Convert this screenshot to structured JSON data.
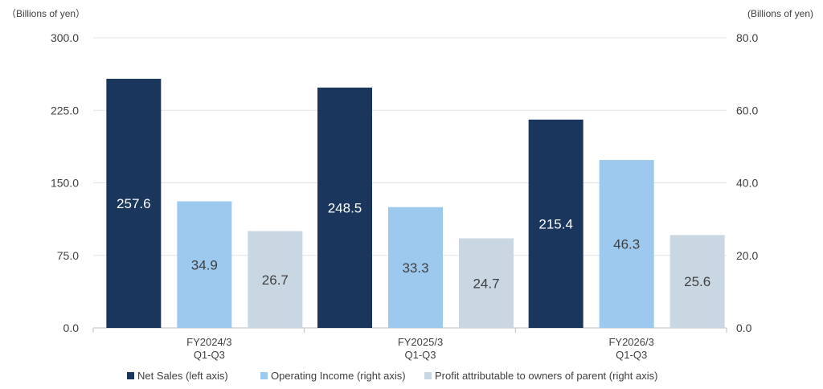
{
  "chart_data": {
    "type": "bar",
    "left_axis_unit": "（Billions of yen）",
    "right_axis_unit": "(Billions of yen)",
    "left_ylim": [
      0,
      300
    ],
    "right_ylim": [
      0,
      80
    ],
    "left_ticks": [
      "0.0",
      "75.0",
      "150.0",
      "225.0",
      "300.0"
    ],
    "right_ticks": [
      "0.0",
      "20.0",
      "40.0",
      "60.0",
      "80.0"
    ],
    "categories": [
      [
        "FY2024/3",
        "Q1-Q3"
      ],
      [
        "FY2025/3",
        "Q1-Q3"
      ],
      [
        "FY2026/3",
        "Q1-Q3"
      ]
    ],
    "series": [
      {
        "name": "Net Sales (left axis)",
        "axis": "left",
        "color": "#1b365d",
        "label_color": "#ffffff",
        "values": [
          257.6,
          248.5,
          215.4
        ],
        "labels": [
          "257.6",
          "248.5",
          "215.4"
        ]
      },
      {
        "name": "Operating Income (right axis)",
        "axis": "right",
        "color": "#9ec9ee",
        "label_color": "#404040",
        "values": [
          34.9,
          33.3,
          46.3
        ],
        "labels": [
          "34.9",
          "33.3",
          "46.3"
        ]
      },
      {
        "name": "Profit attributable to owners of parent (right axis)",
        "axis": "right",
        "color": "#c9d7e3",
        "label_color": "#404040",
        "values": [
          26.7,
          24.7,
          25.6
        ],
        "labels": [
          "26.7",
          "24.7",
          "25.6"
        ]
      }
    ],
    "grid": true,
    "legend_position": "bottom"
  }
}
